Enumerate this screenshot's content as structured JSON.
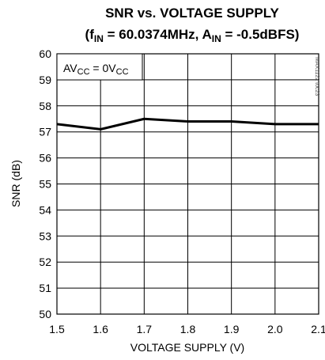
{
  "chart_data": {
    "type": "line",
    "title_line1": "SNR vs. VOLTAGE SUPPLY",
    "title_line2": {
      "p1": "(f",
      "s1": "IN",
      "p2": " = 60.0374MHz, A",
      "s2": "IN",
      "p3": " = -0.5dBFS)"
    },
    "xlabel": "VOLTAGE SUPPLY (V)",
    "ylabel": "SNR (dB)",
    "xlim": [
      1.5,
      2.1
    ],
    "ylim": [
      50,
      60
    ],
    "xticks": [
      "1.5",
      "1.6",
      "1.7",
      "1.8",
      "1.9",
      "2.0",
      "2.1"
    ],
    "yticks": [
      "50",
      "51",
      "52",
      "53",
      "54",
      "55",
      "56",
      "57",
      "58",
      "59",
      "60"
    ],
    "grid": true,
    "annotation": {
      "p1": "AV",
      "s1": "CC",
      "p2": " = 0V",
      "s2": "CC"
    },
    "watermark": "MAX1122 toc23",
    "series": [
      {
        "x": [
          1.5,
          1.6,
          1.7,
          1.8,
          1.9,
          2.0,
          2.1
        ],
        "y": [
          57.3,
          57.1,
          57.5,
          57.4,
          57.4,
          57.3,
          57.3
        ]
      }
    ]
  }
}
